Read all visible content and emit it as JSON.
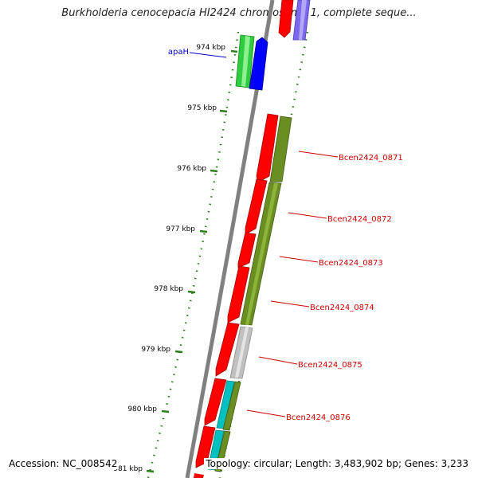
{
  "title": "Burkholderia cenocepacia HI2424 chromosome 1, complete seque...",
  "footer": {
    "accession": "Accession: NC_008542",
    "summary": "Topology: circular; Length: 3,483,902 bp; Genes: 3,233"
  },
  "ticks": [
    "974 kbp",
    "975 kbp",
    "976 kbp",
    "977 kbp",
    "978 kbp",
    "979 kbp",
    "980 kbp",
    "981 kbp"
  ],
  "gene_labels": [
    {
      "name": "apaH",
      "color": "#0000cc"
    },
    {
      "name": "Bcen2424_0871",
      "color": "#cc0000"
    },
    {
      "name": "Bcen2424_0872",
      "color": "#cc0000"
    },
    {
      "name": "Bcen2424_0873",
      "color": "#cc0000"
    },
    {
      "name": "Bcen2424_0874",
      "color": "#cc0000"
    },
    {
      "name": "Bcen2424_0875",
      "color": "#cc0000"
    },
    {
      "name": "Bcen2424_0876",
      "color": "#cc0000"
    }
  ],
  "colors": {
    "backbone": "#808080",
    "tick": "#2e7d1e",
    "red_gene": "#ff0000",
    "olive_gene": "#6b8e23",
    "green_gene": "#33cc33",
    "blue_gene": "#0000ff",
    "lavender_gene": "#7b68ee",
    "gray_gene": "#c0c0c0",
    "cyan_gene": "#00c0c0"
  }
}
